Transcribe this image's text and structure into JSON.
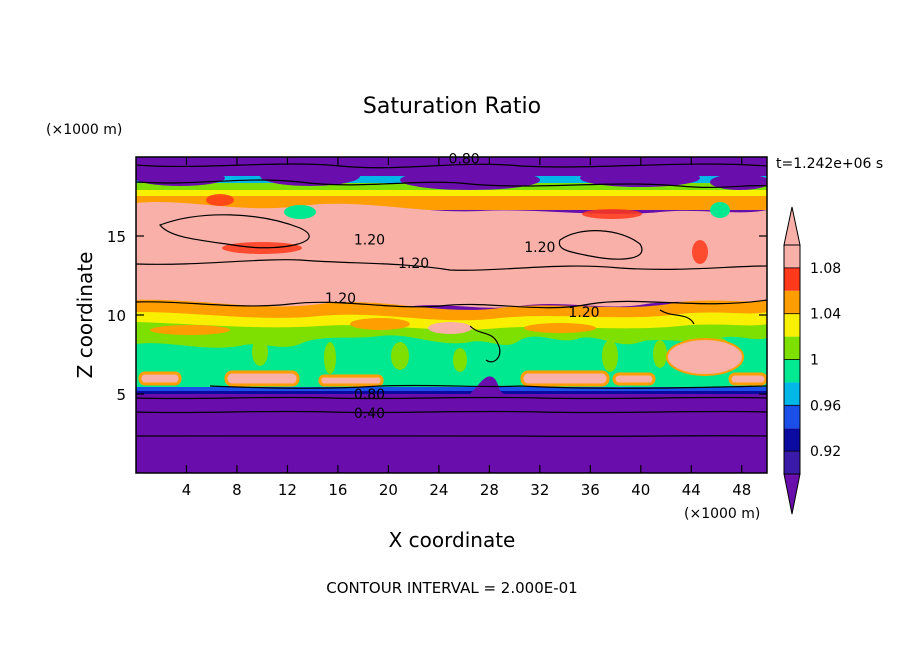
{
  "chart_data": {
    "type": "heatmap",
    "title": "Saturation Ratio",
    "xlabel": "X coordinate",
    "ylabel": "Z coordinate",
    "x_unit": "(×1000 m)",
    "z_unit": "(×1000 m)",
    "time_label": "t=1.242e+06 s",
    "footer": "CONTOUR INTERVAL = 2.000E-01",
    "xlim": [
      0,
      50
    ],
    "ylim": [
      0,
      20
    ],
    "x_ticks": [
      4,
      8,
      12,
      16,
      20,
      24,
      28,
      32,
      36,
      40,
      44,
      48
    ],
    "y_ticks": [
      5,
      10,
      15
    ],
    "colorbar": {
      "levels": [
        0.9,
        0.92,
        0.94,
        0.96,
        0.98,
        1.0,
        1.02,
        1.04,
        1.06,
        1.08,
        1.1
      ],
      "tick_labels": [
        "0.92",
        "0.96",
        "1",
        "1.04",
        "1.08"
      ],
      "tick_values": [
        0.92,
        0.96,
        1.0,
        1.04,
        1.08
      ],
      "colors": [
        "#6a0dad",
        "#3a1aa8",
        "#0a0aa0",
        "#1a50e8",
        "#00b8e8",
        "#00e890",
        "#7ee000",
        "#f8f000",
        "#ff9e00",
        "#ff3a1a",
        "#f8b0a8"
      ]
    },
    "contour_labels": [
      {
        "text": "0.80",
        "x": 26,
        "z": 19.7
      },
      {
        "text": "1.20",
        "x": 18.5,
        "z": 14.6
      },
      {
        "text": "1.20",
        "x": 22,
        "z": 13.1
      },
      {
        "text": "1.20",
        "x": 32,
        "z": 14.1
      },
      {
        "text": "1.20",
        "x": 16.2,
        "z": 10.9
      },
      {
        "text": "1.20",
        "x": 35.5,
        "z": 10.0
      },
      {
        "text": "0.80",
        "x": 18.5,
        "z": 4.8
      },
      {
        "text": "0.40",
        "x": 18.5,
        "z": 3.6
      }
    ]
  }
}
